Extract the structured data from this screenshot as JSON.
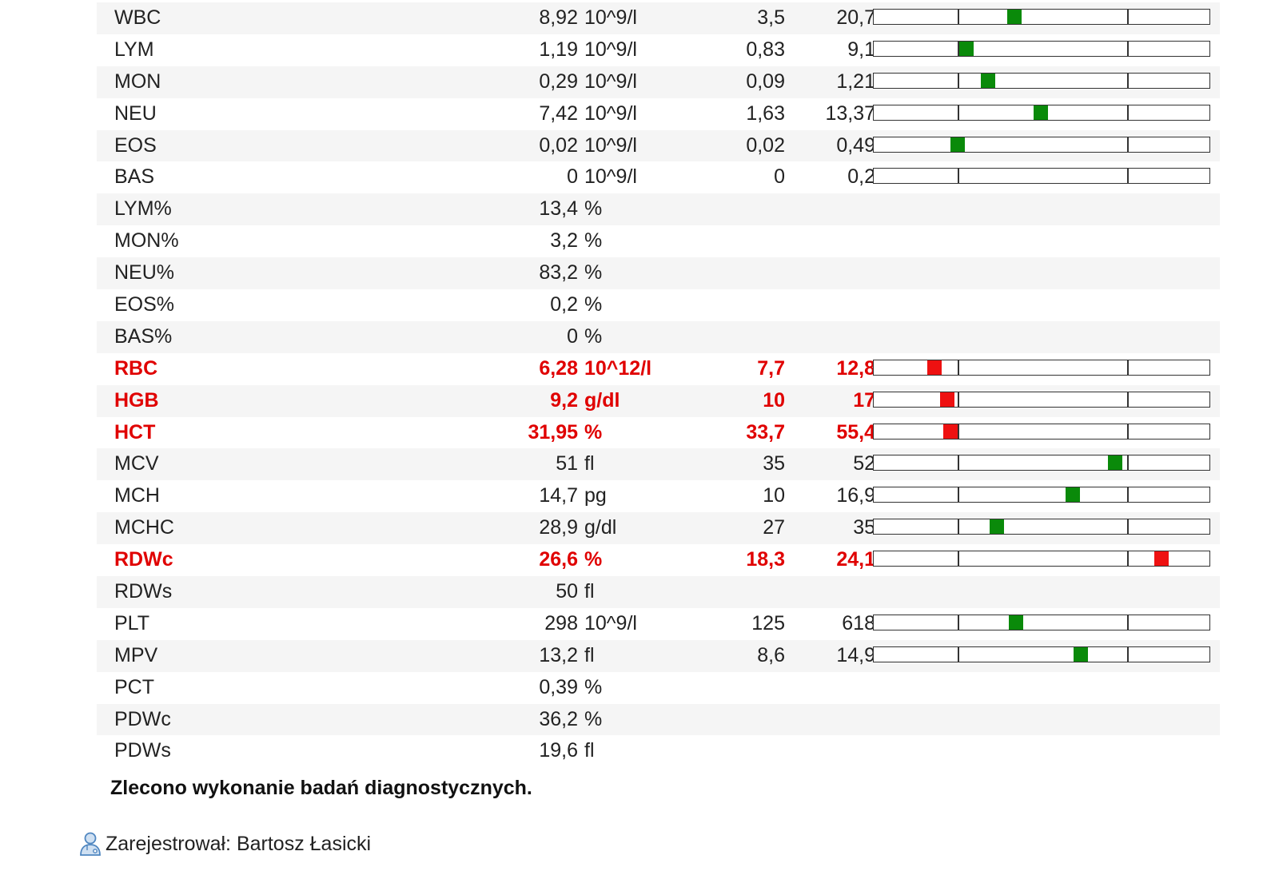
{
  "colors": {
    "normal_marker": "#0a8a0a",
    "abnormal_marker": "#ee1111",
    "abnormal_text": "#e00000"
  },
  "rows": [
    {
      "name": "WBC",
      "value": "8,92",
      "unit": "10^9/l",
      "min": "3,5",
      "max": "20,7",
      "abnormal": false,
      "has_bar": true,
      "marker_position": 0.42
    },
    {
      "name": "LYM",
      "value": "1,19",
      "unit": "10^9/l",
      "min": "0,83",
      "max": "9,1",
      "abnormal": false,
      "has_bar": true,
      "marker_position": 0.275
    },
    {
      "name": "MON",
      "value": "0,29",
      "unit": "10^9/l",
      "min": "0,09",
      "max": "1,21",
      "abnormal": false,
      "has_bar": true,
      "marker_position": 0.341
    },
    {
      "name": "NEU",
      "value": "7,42",
      "unit": "10^9/l",
      "min": "1,63",
      "max": "13,37",
      "abnormal": false,
      "has_bar": true,
      "marker_position": 0.497
    },
    {
      "name": "EOS",
      "value": "0,02",
      "unit": "10^9/l",
      "min": "0,02",
      "max": "0,49",
      "abnormal": false,
      "has_bar": true,
      "marker_position": 0.25
    },
    {
      "name": "BAS",
      "value": "0",
      "unit": "10^9/l",
      "min": "0",
      "max": "0,2",
      "abnormal": false,
      "has_bar": true,
      "marker_position": null
    },
    {
      "name": "LYM%",
      "value": "13,4",
      "unit": "%",
      "min": "",
      "max": "",
      "abnormal": false,
      "has_bar": false
    },
    {
      "name": "MON%",
      "value": "3,2",
      "unit": "%",
      "min": "",
      "max": "",
      "abnormal": false,
      "has_bar": false
    },
    {
      "name": "NEU%",
      "value": "83,2",
      "unit": "%",
      "min": "",
      "max": "",
      "abnormal": false,
      "has_bar": false
    },
    {
      "name": "EOS%",
      "value": "0,2",
      "unit": "%",
      "min": "",
      "max": "",
      "abnormal": false,
      "has_bar": false
    },
    {
      "name": "BAS%",
      "value": "0",
      "unit": "%",
      "min": "",
      "max": "",
      "abnormal": false,
      "has_bar": false
    },
    {
      "name": "RBC",
      "value": "6,28",
      "unit": "10^12/l",
      "min": "7,7",
      "max": "12,8",
      "abnormal": true,
      "has_bar": true,
      "marker_position": 0.182
    },
    {
      "name": "HGB",
      "value": "9,2",
      "unit": "g/dl",
      "min": "10",
      "max": "17",
      "abnormal": true,
      "has_bar": true,
      "marker_position": 0.22
    },
    {
      "name": "HCT",
      "value": "31,95",
      "unit": "%",
      "min": "33,7",
      "max": "55,4",
      "abnormal": true,
      "has_bar": true,
      "marker_position": 0.228
    },
    {
      "name": "MCV",
      "value": "51",
      "unit": "fl",
      "min": "35",
      "max": "52",
      "abnormal": false,
      "has_bar": true,
      "marker_position": 0.72
    },
    {
      "name": "MCH",
      "value": "14,7",
      "unit": "pg",
      "min": "10",
      "max": "16,9",
      "abnormal": false,
      "has_bar": true,
      "marker_position": 0.593
    },
    {
      "name": "MCHC",
      "value": "28,9",
      "unit": "g/dl",
      "min": "27",
      "max": "35",
      "abnormal": false,
      "has_bar": true,
      "marker_position": 0.367
    },
    {
      "name": "RDWc",
      "value": "26,6",
      "unit": "%",
      "min": "18,3",
      "max": "24,1",
      "abnormal": true,
      "has_bar": true,
      "marker_position": 0.858
    },
    {
      "name": "RDWs",
      "value": "50",
      "unit": "fl",
      "min": "",
      "max": "",
      "abnormal": false,
      "has_bar": false
    },
    {
      "name": "PLT",
      "value": "298",
      "unit": "10^9/l",
      "min": "125",
      "max": "618",
      "abnormal": false,
      "has_bar": true,
      "marker_position": 0.424
    },
    {
      "name": "MPV",
      "value": "13,2",
      "unit": "fl",
      "min": "8,6",
      "max": "14,9",
      "abnormal": false,
      "has_bar": true,
      "marker_position": 0.616
    },
    {
      "name": "PCT",
      "value": "0,39",
      "unit": "%",
      "min": "",
      "max": "",
      "abnormal": false,
      "has_bar": false
    },
    {
      "name": "PDWc",
      "value": "36,2",
      "unit": "%",
      "min": "",
      "max": "",
      "abnormal": false,
      "has_bar": false
    },
    {
      "name": "PDWs",
      "value": "19,6",
      "unit": "fl",
      "min": "",
      "max": "",
      "abnormal": false,
      "has_bar": false
    }
  ],
  "note": "Zlecono wykonanie badań diagnostycznych.",
  "footer": {
    "icon": "doctor-user-icon",
    "text": "Zarejestrował: Bartosz Łasicki"
  }
}
